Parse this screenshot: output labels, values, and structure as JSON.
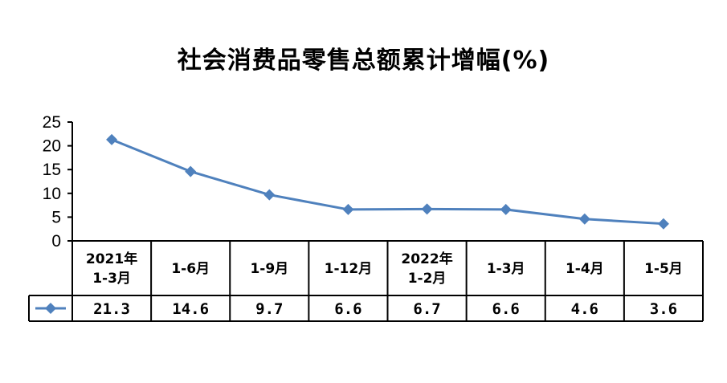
{
  "chart_data": {
    "type": "line",
    "title": "社会消费品零售总额累计增幅(%)",
    "categories": [
      [
        "2021年",
        "1-3月"
      ],
      [
        "1-6月"
      ],
      [
        "1-9月"
      ],
      [
        "1-12月"
      ],
      [
        "2022年",
        "1-2月"
      ],
      [
        "1-3月"
      ],
      [
        "1-4月"
      ],
      [
        "1-5月"
      ]
    ],
    "series": [
      {
        "name": "",
        "values": [
          21.3,
          14.6,
          9.7,
          6.6,
          6.7,
          6.6,
          4.6,
          3.6
        ],
        "value_labels": [
          "21.3",
          "14.6",
          "9.7",
          "6.6",
          "6.7",
          "6.6",
          "4.6",
          "3.6"
        ]
      }
    ],
    "ylim": [
      0,
      25
    ],
    "yticks": [
      0,
      5,
      10,
      15,
      20,
      25
    ],
    "color": "#4f81bd",
    "marker": "diamond",
    "data_table": true,
    "grid": false
  }
}
